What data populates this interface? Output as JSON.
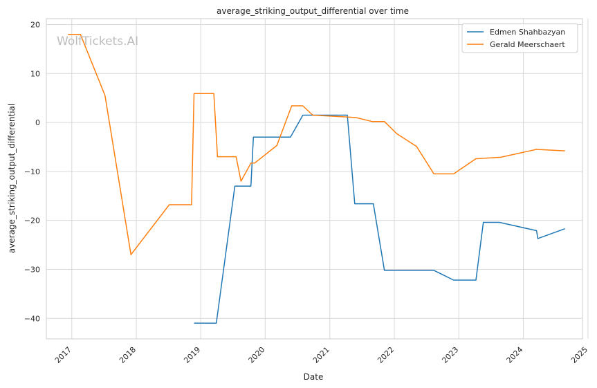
{
  "chart_data": {
    "type": "line",
    "title": "average_striking_output_differential over time",
    "xlabel": "Date",
    "ylabel": "average_striking_output_differential",
    "watermark": "WolfTickets.AI",
    "x_ticks": [
      "2017",
      "2018",
      "2019",
      "2020",
      "2021",
      "2022",
      "2023",
      "2024",
      "2025"
    ],
    "y_ticks": [
      20,
      10,
      0,
      -10,
      -20,
      -30,
      -40
    ],
    "xlim": [
      "2016-08-10",
      "2024-12-01"
    ],
    "ylim": [
      -44.2,
      21.2
    ],
    "grid": true,
    "legend_position": "top-right",
    "series": [
      {
        "name": "Edmen Shahbazyan",
        "color": "#1f77b4",
        "points": [
          [
            "2018-11-24",
            -41.0
          ],
          [
            "2019-03-30",
            -41.0
          ],
          [
            "2019-07-13",
            -13.0
          ],
          [
            "2019-10-12",
            -13.0
          ],
          [
            "2019-10-26",
            -3.0
          ],
          [
            "2020-05-23",
            -3.0
          ],
          [
            "2020-08-01",
            1.5
          ],
          [
            "2021-04-10",
            1.5
          ],
          [
            "2021-05-22",
            -16.6
          ],
          [
            "2021-09-04",
            -16.6
          ],
          [
            "2021-11-06",
            -30.2
          ],
          [
            "2022-08-13",
            -30.2
          ],
          [
            "2022-12-03",
            -32.2
          ],
          [
            "2023-04-08",
            -32.2
          ],
          [
            "2023-05-20",
            -20.4
          ],
          [
            "2023-08-19",
            -20.4
          ],
          [
            "2024-03-16",
            -22.1
          ],
          [
            "2024-03-23",
            -23.7
          ],
          [
            "2024-08-24",
            -21.7
          ]
        ]
      },
      {
        "name": "Gerald Meerschaert",
        "color": "#ff7f0e",
        "points": [
          [
            "2016-12-10",
            18.0
          ],
          [
            "2017-02-19",
            18.0
          ],
          [
            "2017-07-08",
            5.5
          ],
          [
            "2017-12-02",
            -27.0
          ],
          [
            "2018-07-07",
            -16.8
          ],
          [
            "2018-11-10",
            -16.8
          ],
          [
            "2018-11-24",
            5.9
          ],
          [
            "2019-03-16",
            5.9
          ],
          [
            "2019-04-06",
            -7.0
          ],
          [
            "2019-07-20",
            -7.0
          ],
          [
            "2019-08-17",
            -12.0
          ],
          [
            "2019-10-12",
            -8.3
          ],
          [
            "2019-11-02",
            -8.3
          ],
          [
            "2020-03-07",
            -4.7
          ],
          [
            "2020-05-30",
            3.4
          ],
          [
            "2020-08-01",
            3.4
          ],
          [
            "2020-09-26",
            1.5
          ],
          [
            "2021-02-27",
            1.2
          ],
          [
            "2021-05-29",
            1.0
          ],
          [
            "2021-08-28",
            0.2
          ],
          [
            "2021-11-06",
            0.2
          ],
          [
            "2022-01-15",
            -2.3
          ],
          [
            "2022-05-07",
            -4.9
          ],
          [
            "2022-08-13",
            -10.5
          ],
          [
            "2022-12-03",
            -10.5
          ],
          [
            "2023-04-08",
            -7.4
          ],
          [
            "2023-08-26",
            -7.1
          ],
          [
            "2024-03-16",
            -5.5
          ],
          [
            "2024-08-24",
            -5.8
          ]
        ]
      }
    ]
  }
}
